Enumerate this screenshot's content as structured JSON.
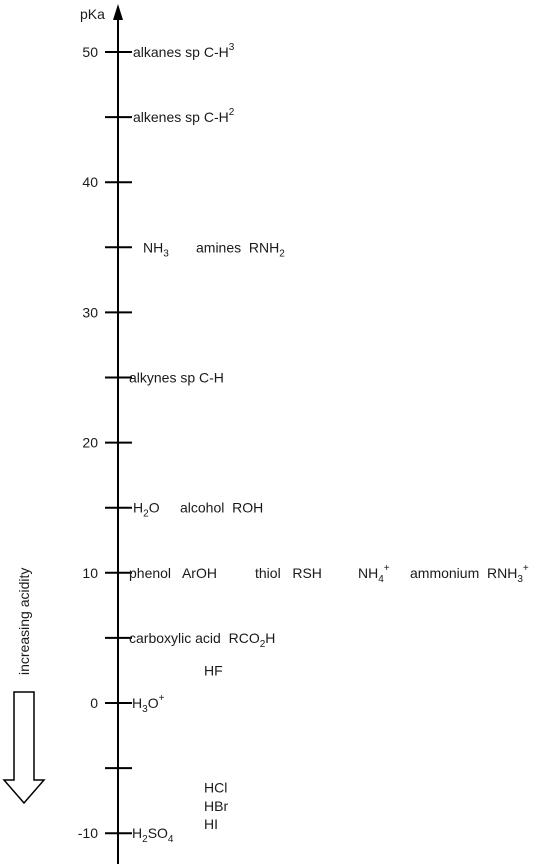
{
  "axis": {
    "title": "pKa",
    "min": -12.5,
    "max": 53.5,
    "major_ticks": [
      50,
      40,
      30,
      20,
      10,
      0,
      -10
    ],
    "minor_ticks": [
      45,
      35,
      25,
      15,
      5,
      -5
    ]
  },
  "arrow_caption": "increasing acidity",
  "labels": [
    {
      "id": "alkanes",
      "pka": 50,
      "col": 0,
      "text": "alkanes sp",
      "sup": "3",
      "tail": " C-H"
    },
    {
      "id": "alkenes",
      "pka": 45,
      "col": 0,
      "text": "alkenes sp",
      "sup": "2",
      "tail": " C-H"
    },
    {
      "id": "nh3",
      "pka": 35,
      "col": 1,
      "text": "NH",
      "sub": "3"
    },
    {
      "id": "amines",
      "pka": 35,
      "col": 2,
      "text": "amines  RNH",
      "sub": "2"
    },
    {
      "id": "alkynes",
      "pka": 25,
      "col": 3,
      "text": "alkynes sp C-H"
    },
    {
      "id": "h2o",
      "pka": 15,
      "col": 0,
      "text": "H",
      "sub": "2",
      "tail": "O"
    },
    {
      "id": "alcohol",
      "pka": 15,
      "col": 4,
      "text": "alcohol  ROH"
    },
    {
      "id": "phenol",
      "pka": 10,
      "col": 3,
      "text": "phenol   ArOH"
    },
    {
      "id": "thiol",
      "pka": 10,
      "col": 5,
      "text": "thiol   RSH"
    },
    {
      "id": "nh4",
      "pka": 10,
      "col": 6,
      "text": "NH",
      "sub": "4",
      "sup": "+"
    },
    {
      "id": "ammonium",
      "pka": 10,
      "col": 7,
      "text": "ammonium  RNH",
      "sub": "3",
      "sup": "+"
    },
    {
      "id": "carboxylic",
      "pka": 5,
      "col": 3,
      "text": "carboxylic acid  RCO",
      "sub": "2",
      "tail": "H"
    },
    {
      "id": "hf",
      "pka": 2.5,
      "col": 8,
      "text": "HF"
    },
    {
      "id": "h3o",
      "pka": 0,
      "col": 9,
      "text": "H",
      "sub": "3",
      "tail": "O",
      "sup": "+"
    },
    {
      "id": "hcl",
      "pka": -6.5,
      "col": 8,
      "text": "HCl"
    },
    {
      "id": "hbr",
      "pka": -7.9,
      "col": 8,
      "text": "HBr"
    },
    {
      "id": "hi",
      "pka": -9.3,
      "col": 8,
      "text": "HI"
    },
    {
      "id": "h2so4",
      "pka": -10,
      "col": 9,
      "text": "H",
      "sub": "2",
      "tail": "SO",
      "sub2": "4"
    }
  ]
}
